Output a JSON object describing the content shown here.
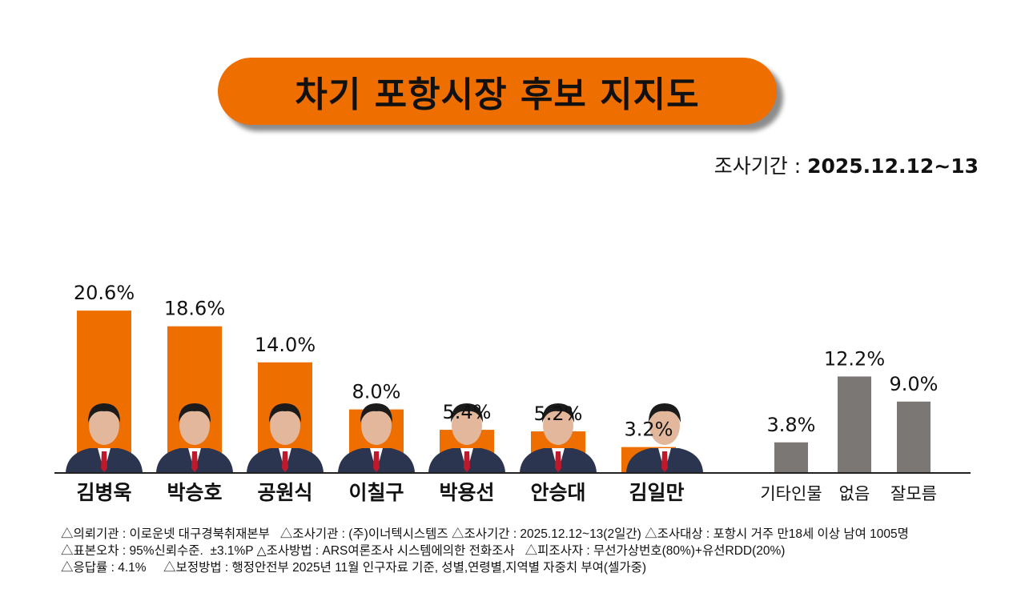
{
  "chart_data": {
    "type": "bar",
    "title": "차기 포항시장 후보 지지도",
    "survey_period_label": "조사기간 :",
    "survey_period_value": "2025.12.12~13",
    "categories": [
      "김병욱",
      "박승호",
      "공원식",
      "이칠구",
      "박용선",
      "안승대",
      "김일만",
      "기타인물",
      "없음",
      "잘모름"
    ],
    "values": [
      20.6,
      18.6,
      14.0,
      8.0,
      5.4,
      5.2,
      3.2,
      3.8,
      12.2,
      9.0
    ],
    "value_labels": [
      "20.6%",
      "18.6%",
      "14.0%",
      "8.0%",
      "5.4%",
      "5.2%",
      "3.2%",
      "3.8%",
      "12.2%",
      "9.0%"
    ],
    "unit": "%",
    "candidate_photos": [
      true,
      true,
      true,
      true,
      true,
      true,
      true,
      false,
      false,
      false
    ],
    "colors": {
      "candidate": "#ee6e00",
      "other": "#7b7774",
      "title_bg": "#ee6e00"
    },
    "grid": false,
    "legend": "none"
  },
  "notes": [
    "△의뢰기관 : 이로운넷 대구경북취재본부   △조사기관 : (주)이너텍시스템즈 △조사기간 : 2025.12.12~13(2일간) △조사대상 : 포항시 거주 만18세 이상 남여 1005명",
    "△표본오차 : 95%신뢰수준.  ±3.1%P △조사방법 : ARS여론조사 시스템에의한 전화조사   △피조사자 : 무선가상번호(80%)+유선RDD(20%)",
    "△응답률 : 4.1%     △보정방법 : 행정안전부 2025년 11월 인구자료 기준, 성별,연령별,지역별 자중치 부여(셀가중)"
  ]
}
